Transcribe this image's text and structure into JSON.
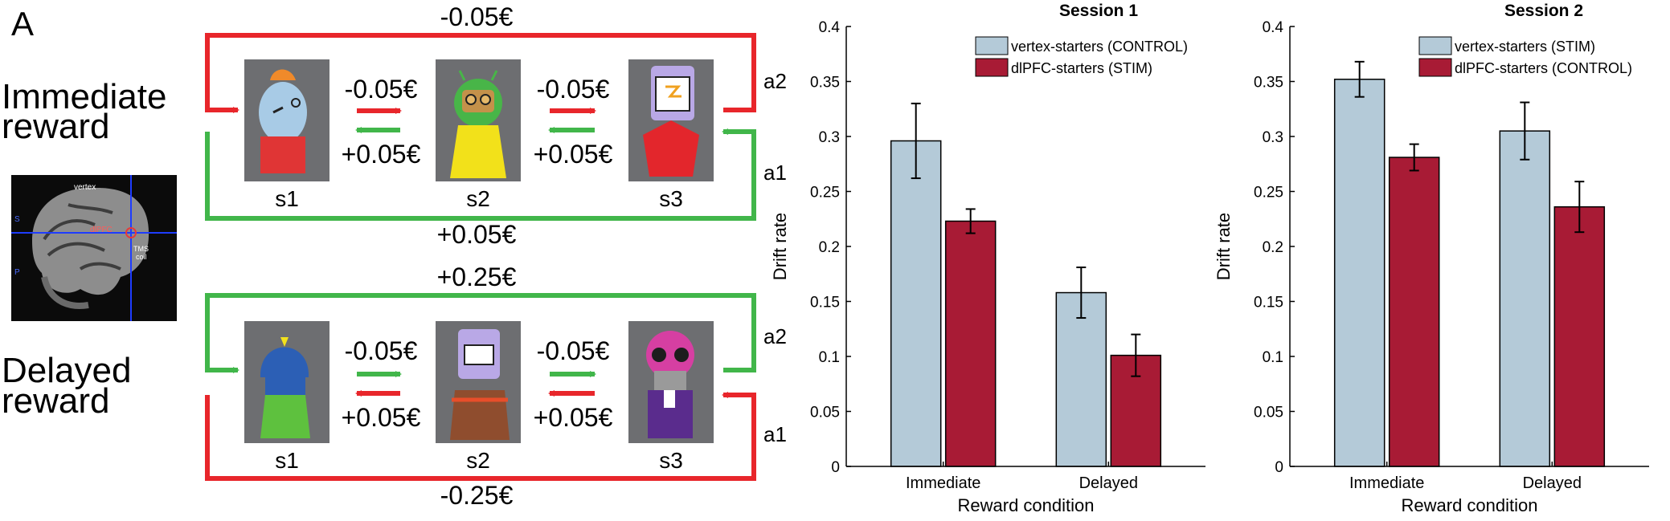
{
  "panel_label": "A",
  "diagram": {
    "rows": [
      {
        "label_line1": "Immediate",
        "label_line2": "reward",
        "top_value": "-0.05€",
        "bottom_value": "+0.05€",
        "fwd_value_1": "-0.05€",
        "back_value_1": "+0.05€",
        "fwd_value_2": "-0.05€",
        "back_value_2": "+0.05€",
        "a2": "a2",
        "a1": "a1",
        "states": [
          "s1",
          "s2",
          "s3"
        ],
        "top_color": "#e8262b",
        "bottom_color": "#41b64a"
      },
      {
        "label_line1": "Delayed",
        "label_line2": "reward",
        "top_value": "+0.25€",
        "bottom_value": "-0.25€",
        "fwd_value_1": "-0.05€",
        "back_value_1": "+0.05€",
        "fwd_value_2": "-0.05€",
        "back_value_2": "+0.05€",
        "a2": "a2",
        "a1": "a1",
        "states": [
          "s1",
          "s2",
          "s3"
        ],
        "top_color": "#41b64a",
        "bottom_color": "#e8262b"
      }
    ],
    "brain": {
      "vertex": "vertex",
      "dlpfc": "dlPFC",
      "tms": "TMS",
      "coil": "coil",
      "s": "S",
      "p": "P"
    }
  },
  "colors": {
    "control_blue": "#b4cad8",
    "stim_red": "#a81b35",
    "arrow_red": "#e8262b",
    "arrow_green": "#41b64a"
  },
  "chart_data": [
    {
      "type": "bar",
      "title": "Session 1",
      "categories": [
        "Immediate",
        "Delayed"
      ],
      "series": [
        {
          "name": "vertex-starters (CONTROL)",
          "values": [
            0.296,
            0.158
          ],
          "errors": [
            0.034,
            0.023
          ],
          "color": "#b4cad8"
        },
        {
          "name": "dlPFC-starters (STIM)",
          "values": [
            0.223,
            0.101
          ],
          "errors": [
            0.011,
            0.019
          ],
          "color": "#a81b35"
        }
      ],
      "xlabel": "Reward condition",
      "ylabel": "Drift rate",
      "ylim": [
        0,
        0.4
      ],
      "yticks": [
        "0",
        "0.05",
        "0.1",
        "0.15",
        "0.2",
        "0.25",
        "0.3",
        "0.35",
        "0.4"
      ],
      "legend": "top-right",
      "grid": false
    },
    {
      "type": "bar",
      "title": "Session 2",
      "categories": [
        "Immediate",
        "Delayed"
      ],
      "series": [
        {
          "name": "vertex-starters (STIM)",
          "values": [
            0.352,
            0.305
          ],
          "errors": [
            0.016,
            0.026
          ],
          "color": "#b4cad8"
        },
        {
          "name": "dlPFC-starters (CONTROL)",
          "values": [
            0.281,
            0.236
          ],
          "errors": [
            0.012,
            0.023
          ],
          "color": "#a81b35"
        }
      ],
      "xlabel": "Reward condition",
      "ylabel": "Drift rate",
      "ylim": [
        0,
        0.4
      ],
      "yticks": [
        "0",
        "0.05",
        "0.1",
        "0.15",
        "0.2",
        "0.25",
        "0.3",
        "0.35",
        "0.4"
      ],
      "legend": "top-right",
      "grid": false
    }
  ]
}
